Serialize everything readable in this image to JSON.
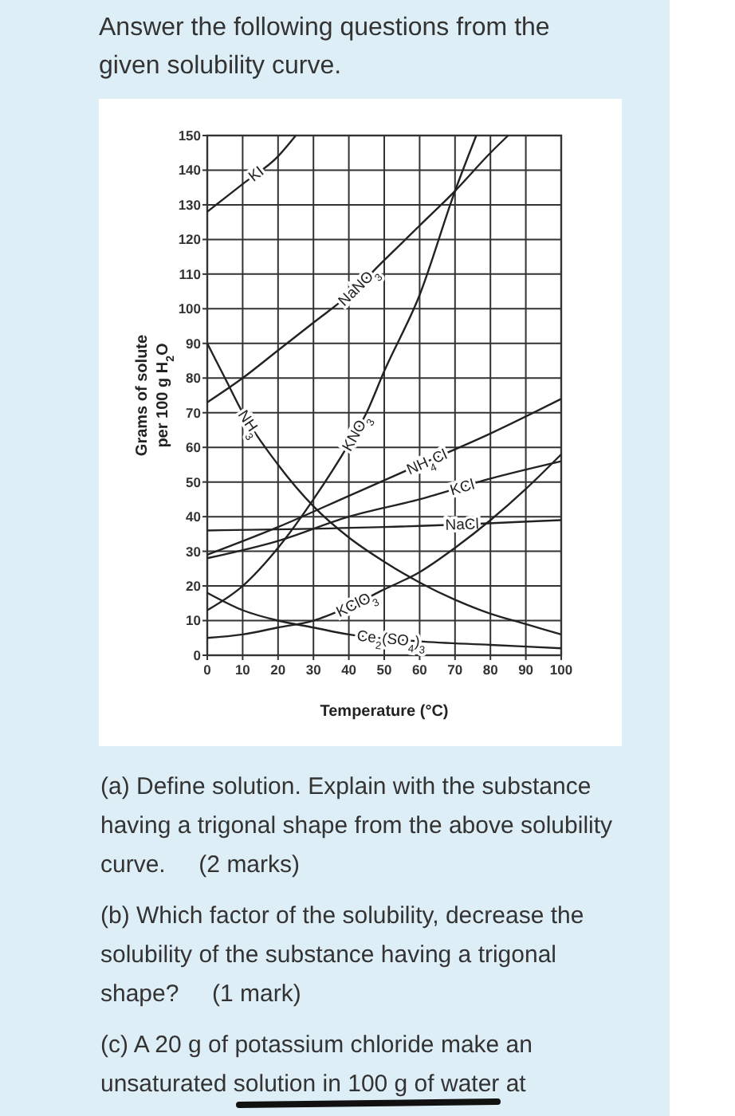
{
  "chart_data": {
    "type": "line",
    "title": "Answer the following questions from the given solubility curve.",
    "xlabel": "Temperature (°C)",
    "ylabel": "Grams of solute per 100 g H$_{2}$O",
    "xlim": [
      0,
      100
    ],
    "ylim": [
      0,
      150
    ],
    "xticks": [
      0,
      10,
      20,
      30,
      40,
      50,
      60,
      70,
      80,
      90,
      100
    ],
    "yticks": [
      0,
      10,
      20,
      30,
      40,
      50,
      60,
      70,
      80,
      90,
      100,
      110,
      120,
      130,
      140,
      150
    ],
    "grid": true,
    "series": [
      {
        "name": "KI",
        "color": "#222222",
        "x": [
          0,
          10,
          20,
          25
        ],
        "values": [
          128,
          136,
          144,
          150
        ]
      },
      {
        "name": "NaNO$_{3}$",
        "color": "#222222",
        "x": [
          0,
          10,
          20,
          30,
          40,
          50,
          60,
          70,
          80,
          85
        ],
        "values": [
          73,
          80,
          88,
          96,
          104,
          114,
          124,
          134,
          145,
          150
        ]
      },
      {
        "name": "KNO$_{3}$",
        "color": "#222222",
        "x": [
          0,
          10,
          20,
          30,
          40,
          45,
          50,
          60,
          70,
          76
        ],
        "values": [
          13,
          20,
          31,
          45,
          61,
          70,
          82,
          104,
          134,
          150
        ]
      },
      {
        "name": "NH$_{3}$",
        "color": "#222222",
        "x": [
          0,
          5,
          10,
          20,
          30,
          40,
          50,
          60,
          70,
          80,
          90,
          100
        ],
        "values": [
          90,
          80,
          70,
          55,
          43,
          34,
          27,
          21,
          16,
          12,
          9,
          6
        ]
      },
      {
        "name": "NH$_{4}$Cl",
        "color": "#222222",
        "x": [
          0,
          20,
          40,
          60,
          80,
          100
        ],
        "values": [
          29,
          37,
          46,
          55,
          64,
          74
        ]
      },
      {
        "name": "KCl",
        "color": "#222222",
        "x": [
          0,
          20,
          40,
          60,
          80,
          100
        ],
        "values": [
          28,
          33,
          40,
          45,
          51,
          56
        ]
      },
      {
        "name": "NaCl",
        "color": "#222222",
        "x": [
          0,
          50,
          100
        ],
        "values": [
          36,
          37,
          39
        ]
      },
      {
        "name": "KClO$_{3}$",
        "color": "#222222",
        "x": [
          0,
          10,
          20,
          30,
          40,
          50,
          60,
          70,
          80,
          90,
          100
        ],
        "values": [
          5,
          6,
          8,
          10,
          14,
          19,
          24,
          31,
          39,
          48,
          58
        ]
      },
      {
        "name": "Ce$_{2}$(SO$_{4}$)$_{3}$",
        "color": "#222222",
        "x": [
          0,
          10,
          20,
          30,
          40,
          60,
          80,
          100
        ],
        "values": [
          18,
          13,
          10,
          8,
          6,
          4,
          3,
          2
        ]
      }
    ],
    "annotations": [
      "(a) Define solution. Explain with the substance having a trigonal shape from the above solubility curve.     (2 marks)",
      "(b) Which factor of the solubility, decrease the solubility of the substance having a trigonal shape?     (1 mark)",
      "(c) A 20 g of potassium chloride make an unsaturated solution in 100 g of water at"
    ]
  }
}
